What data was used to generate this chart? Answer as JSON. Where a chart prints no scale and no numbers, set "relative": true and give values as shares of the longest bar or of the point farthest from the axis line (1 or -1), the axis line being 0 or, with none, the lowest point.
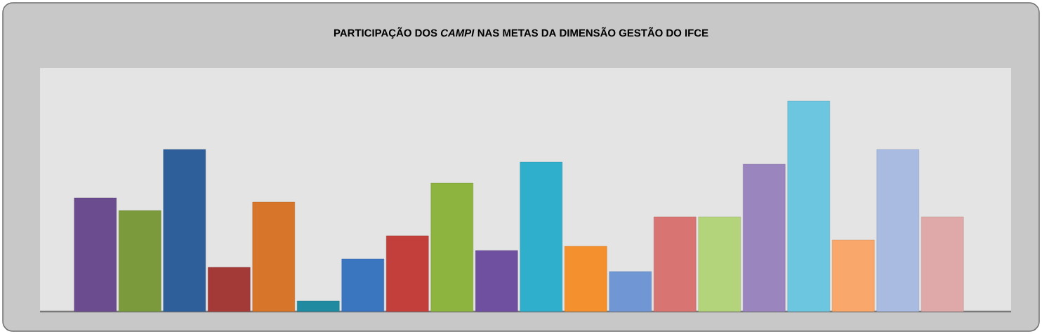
{
  "chart_data": {
    "type": "bar",
    "title": "PARTICIPAÇÃO DOS *CAMPI* NAS METAS DA DIMENSÃO GESTÃO DO IFCE",
    "relative": true,
    "categories": [
      null,
      null,
      null,
      null,
      null,
      null,
      null,
      null,
      null,
      null,
      null,
      null,
      null,
      null,
      null,
      null,
      null,
      null,
      null,
      null
    ],
    "values": [
      0.54,
      0.48,
      0.77,
      0.21,
      0.52,
      0.05,
      0.25,
      0.36,
      0.61,
      0.29,
      0.71,
      0.31,
      0.19,
      0.45,
      0.45,
      0.7,
      1,
      0.34,
      0.77,
      0.45
    ],
    "colors": [
      "#6b4c8f",
      "#7a9a3c",
      "#2e5f9a",
      "#a33a38",
      "#d7752a",
      "#1f8aa0",
      "#3a75c0",
      "#c23f3c",
      "#8db43e",
      "#6f4f9f",
      "#2fafcc",
      "#f5902e",
      "#7097d4",
      "#d87472",
      "#b4d47c",
      "#9b85bf",
      "#6cc6e0",
      "#f9a76a",
      "#a9bbe0",
      "#e0a9a9"
    ]
  }
}
